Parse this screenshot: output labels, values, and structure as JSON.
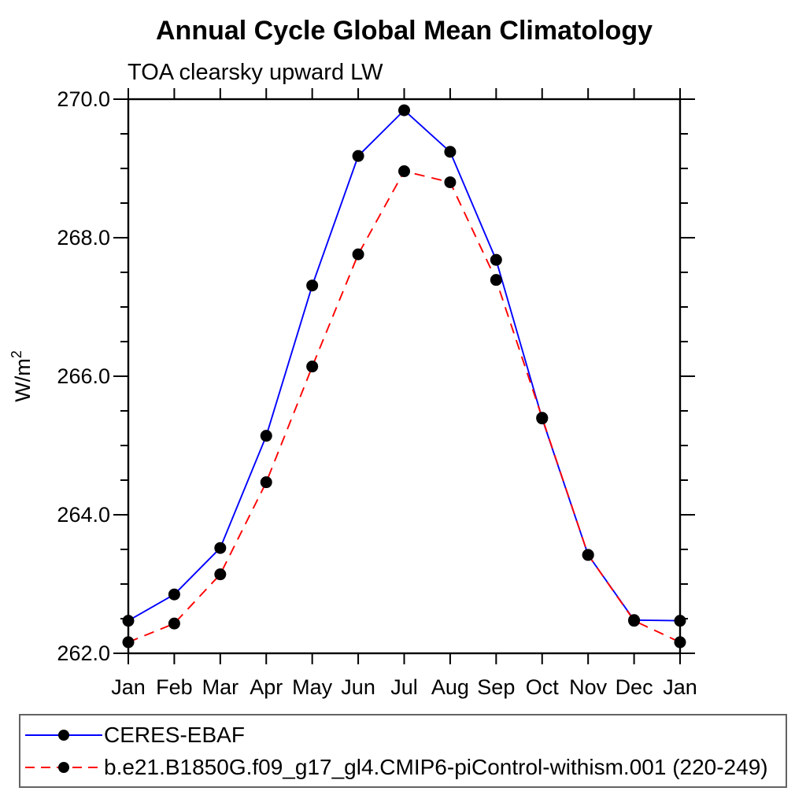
{
  "page": {
    "title": "Annual Cycle Global Mean Climatology",
    "subtitle": "TOA clearsky upward LW"
  },
  "colors": {
    "series1": "#0000ff",
    "series2": "#ff0000",
    "marker": "#000000",
    "axis": "#000000",
    "legend_border": "#636363"
  },
  "chart_data": {
    "type": "line",
    "title": "Annual Cycle Global Mean Climatology",
    "subtitle": "TOA clearsky upward LW",
    "ylabel_base": "W/m",
    "ylabel_exponent": "2",
    "categories": [
      "Jan",
      "Feb",
      "Mar",
      "Apr",
      "May",
      "Jun",
      "Jul",
      "Aug",
      "Sep",
      "Oct",
      "Nov",
      "Dec",
      "Jan"
    ],
    "ylim": [
      262.0,
      270.0
    ],
    "y_major_step": 2.0,
    "y_minor_step": 0.5,
    "y_tick_labels": [
      "262.0",
      "264.0",
      "266.0",
      "268.0",
      "270.0"
    ],
    "grid": false,
    "legend_position": "bottom",
    "marker": "filled-circle",
    "series": [
      {
        "name": "CERES-EBAF",
        "color": "#0000ff",
        "line_style": "solid",
        "values": [
          262.47,
          262.85,
          263.52,
          265.14,
          267.31,
          269.18,
          269.84,
          269.24,
          267.68,
          265.39,
          263.42,
          262.48,
          262.47
        ]
      },
      {
        "name": "b.e21.B1850G.f09_g17_gl4.CMIP6-piControl-withism.001 (220-249)",
        "color": "#ff0000",
        "line_style": "dashed",
        "values": [
          262.16,
          262.43,
          263.14,
          264.47,
          266.14,
          267.76,
          268.96,
          268.8,
          267.39,
          265.4,
          263.42,
          262.47,
          262.16
        ]
      }
    ]
  }
}
